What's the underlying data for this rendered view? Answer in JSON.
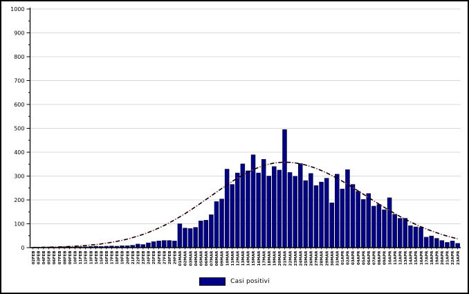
{
  "figure": {
    "background": "#ffffff",
    "border_color": "#000000"
  },
  "legend": {
    "label": "Casi positivi",
    "swatch_color": "#00008b",
    "swatch_border": "#000000"
  },
  "chart_data": {
    "type": "bar",
    "title": "",
    "xlabel": "",
    "ylabel": "",
    "ylim": [
      0,
      1000
    ],
    "y_ticks": [
      0,
      100,
      200,
      300,
      400,
      500,
      600,
      700,
      800,
      900,
      1000
    ],
    "y_minor_step": 50,
    "grid": "horizontal",
    "grid_color": "#d8d8d8",
    "axis_color": "#000000",
    "bar_color": "#00008b",
    "bar_border": "#000000",
    "legend_entries": [
      "Casi positivi"
    ],
    "legend_position": "bottom-center",
    "categories": [
      "02FEB",
      "03FEB",
      "04FEB",
      "05FEB",
      "06FEB",
      "07FEB",
      "08FEB",
      "09FEB",
      "10FEB",
      "11FEB",
      "12FEB",
      "13FEB",
      "14FEB",
      "15FEB",
      "16FEB",
      "17FEB",
      "18FEB",
      "19FEB",
      "20FEB",
      "21FEB",
      "22FEB",
      "23FEB",
      "24FEB",
      "25FEB",
      "26FEB",
      "27FEB",
      "28FEB",
      "29FEB",
      "01MAR",
      "02MAR",
      "03MAR",
      "04MAR",
      "05MAR",
      "06MAR",
      "07MAR",
      "08MAR",
      "09MAR",
      "10MAR",
      "11MAR",
      "12MAR",
      "13MAR",
      "14MAR",
      "15MAR",
      "16MAR",
      "17MAR",
      "18MAR",
      "19MAR",
      "20MAR",
      "21MAR",
      "22MAR",
      "23MAR",
      "24MAR",
      "25MAR",
      "26MAR",
      "27MAR",
      "28MAR",
      "29MAR",
      "30MAR",
      "31MAR",
      "01APR",
      "02APR",
      "03APR",
      "04APR",
      "05APR",
      "06APR",
      "07APR",
      "08APR",
      "09APR",
      "10APR",
      "11APR",
      "12APR",
      "13APR",
      "14APR",
      "15APR",
      "16APR",
      "17APR",
      "18APR",
      "19APR",
      "20APR",
      "21APR",
      "22APR",
      "23APR"
    ],
    "values": [
      1,
      2,
      1,
      3,
      2,
      2,
      4,
      3,
      3,
      4,
      4,
      5,
      6,
      5,
      6,
      7,
      6,
      8,
      8,
      10,
      15,
      13,
      20,
      25,
      28,
      30,
      30,
      28,
      100,
      82,
      80,
      85,
      112,
      115,
      138,
      193,
      204,
      329,
      265,
      313,
      351,
      322,
      389,
      313,
      370,
      300,
      340,
      325,
      495,
      315,
      299,
      353,
      281,
      311,
      260,
      275,
      291,
      188,
      308,
      246,
      327,
      265,
      236,
      202,
      227,
      174,
      181,
      159,
      209,
      140,
      123,
      123,
      92,
      87,
      85,
      44,
      49,
      39,
      30,
      22,
      28,
      18
    ],
    "trend_curve": {
      "style": "dash-dot",
      "color_primary": "#000000",
      "color_secondary": "#cc2233",
      "shape": "gaussian",
      "peak_value": 358,
      "peak_category": "21MAR",
      "sigma_left_days": 14,
      "sigma_right_days": 15.5
    }
  }
}
